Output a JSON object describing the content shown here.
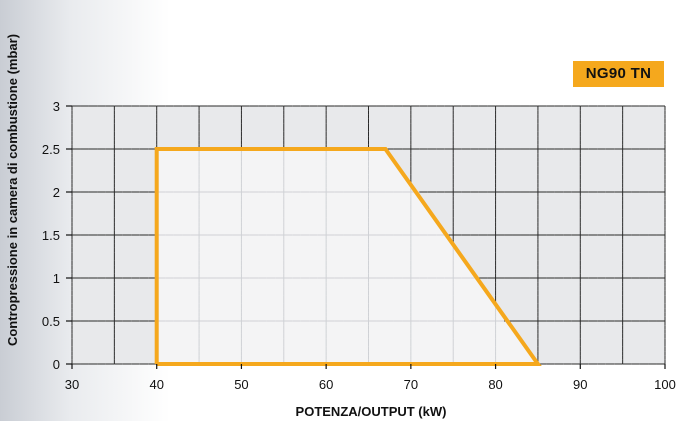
{
  "badge": {
    "label": "NG90 TN"
  },
  "chart_data": {
    "type": "area",
    "title": "",
    "xlabel": "POTENZA/OUTPUT (kW)",
    "ylabel": "Contropressione in camera di combustione (mbar)",
    "xlim": [
      30,
      100
    ],
    "ylim": [
      0,
      3
    ],
    "x_ticks": [
      30,
      40,
      50,
      60,
      70,
      80,
      90,
      100
    ],
    "y_ticks": [
      0,
      0.5,
      1,
      1.5,
      2,
      2.5,
      3
    ],
    "x_minor_step": 5,
    "y_minor_step": 0.5,
    "grid": true,
    "colors": {
      "outline": "#f5a81d",
      "fill": "#f4f4f5",
      "grid_cell": "#e8e9eb",
      "grid_line": "#2a2a2a",
      "inner_grid_line": "#cfd1d5"
    },
    "series": [
      {
        "x": [
          40,
          40,
          67,
          85,
          40
        ],
        "y": [
          0,
          2.5,
          2.5,
          0,
          0
        ]
      }
    ]
  }
}
